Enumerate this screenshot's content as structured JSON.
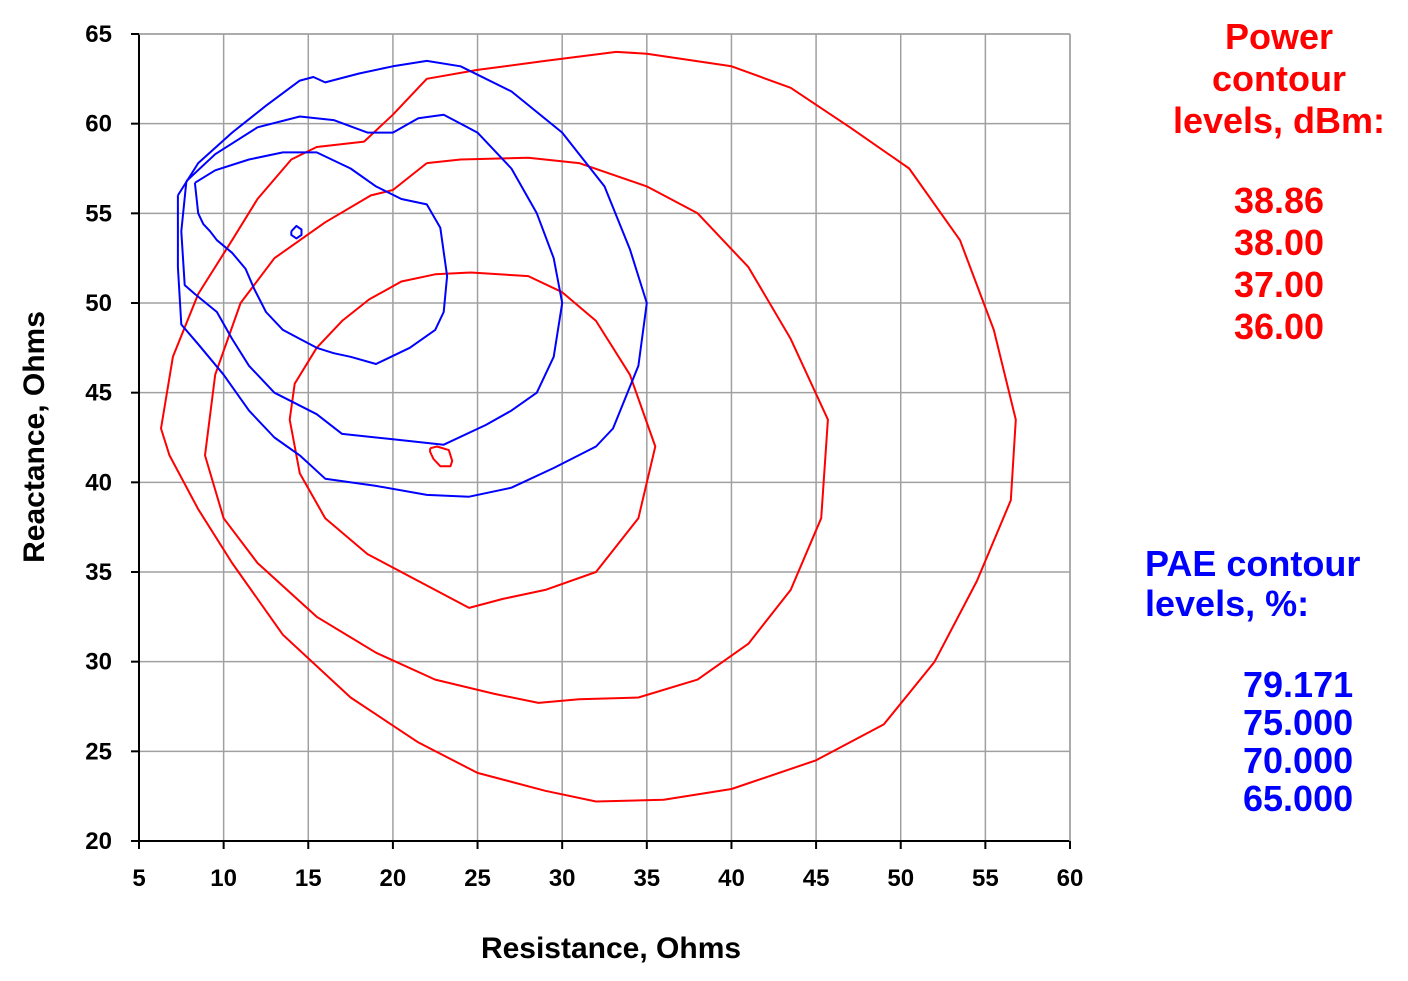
{
  "chart_data": {
    "type": "line",
    "xlabel": "Resistance, Ohms",
    "ylabel": "Reactance, Ohms",
    "xlim": [
      5,
      60
    ],
    "ylim": [
      20,
      65
    ],
    "xticks": [
      5,
      10,
      15,
      20,
      25,
      30,
      35,
      40,
      45,
      50,
      55,
      60
    ],
    "yticks": [
      20,
      25,
      30,
      35,
      40,
      45,
      50,
      55,
      60,
      65
    ],
    "grid": true,
    "colors": {
      "power": "#ff0000",
      "pae": "#0000ff",
      "grid": "#a0a0a0",
      "axis": "#000000"
    },
    "series": [
      {
        "group": "power",
        "level": "38.86",
        "points": [
          [
            22.2,
            41.9
          ],
          [
            22.6,
            42.0
          ],
          [
            23.3,
            41.8
          ],
          [
            23.5,
            41.2
          ],
          [
            23.4,
            40.9
          ],
          [
            22.8,
            40.9
          ],
          [
            22.4,
            41.3
          ],
          [
            22.2,
            41.7
          ],
          [
            22.2,
            41.9
          ]
        ]
      },
      {
        "group": "power",
        "level": "38.00",
        "points": [
          [
            24.6,
            51.7
          ],
          [
            28.0,
            51.5
          ],
          [
            30.0,
            50.6
          ],
          [
            32.0,
            49.0
          ],
          [
            34.0,
            46.0
          ],
          [
            35.5,
            42.0
          ],
          [
            34.5,
            38.0
          ],
          [
            32.0,
            35.0
          ],
          [
            29.0,
            34.0
          ],
          [
            26.5,
            33.5
          ],
          [
            24.5,
            33.0
          ],
          [
            21.5,
            34.5
          ],
          [
            18.5,
            36.0
          ],
          [
            16.0,
            38.0
          ],
          [
            14.5,
            40.5
          ],
          [
            13.9,
            43.5
          ],
          [
            14.2,
            45.5
          ],
          [
            15.5,
            47.5
          ],
          [
            17.0,
            49.0
          ],
          [
            18.6,
            50.2
          ],
          [
            20.5,
            51.2
          ],
          [
            22.5,
            51.6
          ],
          [
            24.6,
            51.7
          ]
        ]
      },
      {
        "group": "power",
        "level": "37.00",
        "points": [
          [
            22.0,
            57.8
          ],
          [
            24.0,
            58.0
          ],
          [
            28.0,
            58.1
          ],
          [
            31.0,
            57.8
          ],
          [
            35.0,
            56.5
          ],
          [
            38.0,
            55.0
          ],
          [
            41.0,
            52.0
          ],
          [
            43.5,
            48.0
          ],
          [
            45.7,
            43.5
          ],
          [
            45.3,
            38.0
          ],
          [
            43.5,
            34.0
          ],
          [
            41.0,
            31.0
          ],
          [
            38.0,
            29.0
          ],
          [
            34.5,
            28.0
          ],
          [
            31.0,
            27.9
          ],
          [
            28.6,
            27.7
          ],
          [
            26.0,
            28.2
          ],
          [
            22.5,
            29.0
          ],
          [
            19.0,
            30.5
          ],
          [
            15.5,
            32.5
          ],
          [
            12.0,
            35.5
          ],
          [
            10.0,
            38.0
          ],
          [
            8.9,
            41.5
          ],
          [
            9.5,
            46.0
          ],
          [
            11.0,
            50.0
          ],
          [
            13.0,
            52.5
          ],
          [
            16.0,
            54.5
          ],
          [
            18.7,
            56.0
          ],
          [
            20.0,
            56.3
          ],
          [
            22.0,
            57.8
          ]
        ]
      },
      {
        "group": "power",
        "level": "36.00",
        "points": [
          [
            33.2,
            64.0
          ],
          [
            35.0,
            63.9
          ],
          [
            40.0,
            63.2
          ],
          [
            43.5,
            62.0
          ],
          [
            47.0,
            59.8
          ],
          [
            50.5,
            57.5
          ],
          [
            53.5,
            53.5
          ],
          [
            55.5,
            48.5
          ],
          [
            56.8,
            43.5
          ],
          [
            56.5,
            39.0
          ],
          [
            54.5,
            34.5
          ],
          [
            52.0,
            30.0
          ],
          [
            49.0,
            26.5
          ],
          [
            45.0,
            24.5
          ],
          [
            40.0,
            22.9
          ],
          [
            36.0,
            22.3
          ],
          [
            32.0,
            22.2
          ],
          [
            29.0,
            22.8
          ],
          [
            25.0,
            23.8
          ],
          [
            21.5,
            25.5
          ],
          [
            17.5,
            28.0
          ],
          [
            13.5,
            31.5
          ],
          [
            10.5,
            35.5
          ],
          [
            8.5,
            38.5
          ],
          [
            6.8,
            41.5
          ],
          [
            6.3,
            43.0
          ],
          [
            7.0,
            47.0
          ],
          [
            8.5,
            50.5
          ],
          [
            10.5,
            53.5
          ],
          [
            12.0,
            55.8
          ],
          [
            14.0,
            58.0
          ],
          [
            15.5,
            58.7
          ],
          [
            18.3,
            59.0
          ],
          [
            20.0,
            60.5
          ],
          [
            22.0,
            62.5
          ],
          [
            25.0,
            63.0
          ],
          [
            29.0,
            63.5
          ],
          [
            33.2,
            64.0
          ]
        ]
      },
      {
        "group": "pae",
        "level": "75.000",
        "points": [
          [
            8.3,
            56.7
          ],
          [
            9.5,
            57.4
          ],
          [
            11.5,
            58.0
          ],
          [
            13.5,
            58.4
          ],
          [
            15.5,
            58.4
          ],
          [
            17.5,
            57.5
          ],
          [
            19.0,
            56.5
          ],
          [
            20.5,
            55.8
          ],
          [
            22.0,
            55.5
          ],
          [
            22.8,
            54.2
          ],
          [
            23.2,
            51.5
          ],
          [
            23.0,
            49.5
          ],
          [
            22.5,
            48.5
          ],
          [
            21.0,
            47.5
          ],
          [
            19.0,
            46.6
          ],
          [
            17.5,
            47.0
          ],
          [
            16.5,
            47.2
          ],
          [
            15.5,
            47.5
          ],
          [
            14.5,
            48.0
          ],
          [
            13.5,
            48.5
          ],
          [
            12.5,
            49.5
          ],
          [
            11.8,
            50.8
          ],
          [
            11.3,
            51.9
          ],
          [
            10.5,
            52.8
          ],
          [
            9.6,
            53.5
          ],
          [
            9.2,
            54.0
          ],
          [
            8.8,
            54.4
          ],
          [
            8.5,
            55.0
          ],
          [
            8.3,
            56.7
          ]
        ]
      },
      {
        "group": "pae",
        "level": "70.000",
        "points": [
          [
            7.8,
            56.8
          ],
          [
            9.5,
            58.3
          ],
          [
            12.0,
            59.8
          ],
          [
            14.5,
            60.4
          ],
          [
            16.5,
            60.2
          ],
          [
            18.5,
            59.5
          ],
          [
            20.0,
            59.5
          ],
          [
            21.5,
            60.3
          ],
          [
            23.0,
            60.5
          ],
          [
            25.0,
            59.5
          ],
          [
            27.0,
            57.5
          ],
          [
            28.5,
            55.0
          ],
          [
            29.5,
            52.5
          ],
          [
            30.0,
            50.0
          ],
          [
            29.5,
            47.0
          ],
          [
            28.5,
            45.0
          ],
          [
            27.0,
            44.0
          ],
          [
            25.5,
            43.2
          ],
          [
            23.0,
            42.1
          ],
          [
            20.0,
            42.4
          ],
          [
            17.0,
            42.7
          ],
          [
            15.5,
            43.8
          ],
          [
            13.0,
            45.0
          ],
          [
            11.5,
            46.5
          ],
          [
            10.5,
            48.0
          ],
          [
            9.6,
            49.5
          ],
          [
            8.3,
            50.5
          ],
          [
            7.7,
            51.0
          ],
          [
            7.5,
            54.0
          ],
          [
            7.8,
            56.8
          ]
        ]
      },
      {
        "group": "pae",
        "level": "65.000",
        "points": [
          [
            7.3,
            56.0
          ],
          [
            8.5,
            57.8
          ],
          [
            10.5,
            59.5
          ],
          [
            12.5,
            61.0
          ],
          [
            14.5,
            62.4
          ],
          [
            15.3,
            62.6
          ],
          [
            16.0,
            62.3
          ],
          [
            18.0,
            62.8
          ],
          [
            20.0,
            63.2
          ],
          [
            22.0,
            63.5
          ],
          [
            24.0,
            63.2
          ],
          [
            27.0,
            61.8
          ],
          [
            30.0,
            59.5
          ],
          [
            32.5,
            56.5
          ],
          [
            34.0,
            53.0
          ],
          [
            35.0,
            50.0
          ],
          [
            34.5,
            46.5
          ],
          [
            33.0,
            43.0
          ],
          [
            32.0,
            42.0
          ],
          [
            29.5,
            40.8
          ],
          [
            27.0,
            39.7
          ],
          [
            24.5,
            39.2
          ],
          [
            22.0,
            39.3
          ],
          [
            19.0,
            39.8
          ],
          [
            16.0,
            40.2
          ],
          [
            14.5,
            41.5
          ],
          [
            13.0,
            42.5
          ],
          [
            11.5,
            44.0
          ],
          [
            10.0,
            46.0
          ],
          [
            8.5,
            47.7
          ],
          [
            7.5,
            48.8
          ],
          [
            7.3,
            52.0
          ],
          [
            7.3,
            56.0
          ]
        ]
      },
      {
        "group": "pae",
        "level": "79.171",
        "points": [
          [
            14.0,
            54.0
          ],
          [
            14.3,
            54.3
          ],
          [
            14.6,
            54.1
          ],
          [
            14.6,
            53.8
          ],
          [
            14.3,
            53.6
          ],
          [
            14.0,
            53.8
          ],
          [
            14.0,
            54.0
          ]
        ]
      }
    ],
    "legends": {
      "power": {
        "heading": "Power\ncontour\nlevels, dBm:",
        "levels": [
          "38.86",
          "38.00",
          "37.00",
          "36.00"
        ]
      },
      "pae": {
        "heading": "PAE contour\nlevels, %:",
        "levels": [
          "79.171",
          "75.000",
          "70.000",
          "65.000"
        ]
      }
    }
  }
}
